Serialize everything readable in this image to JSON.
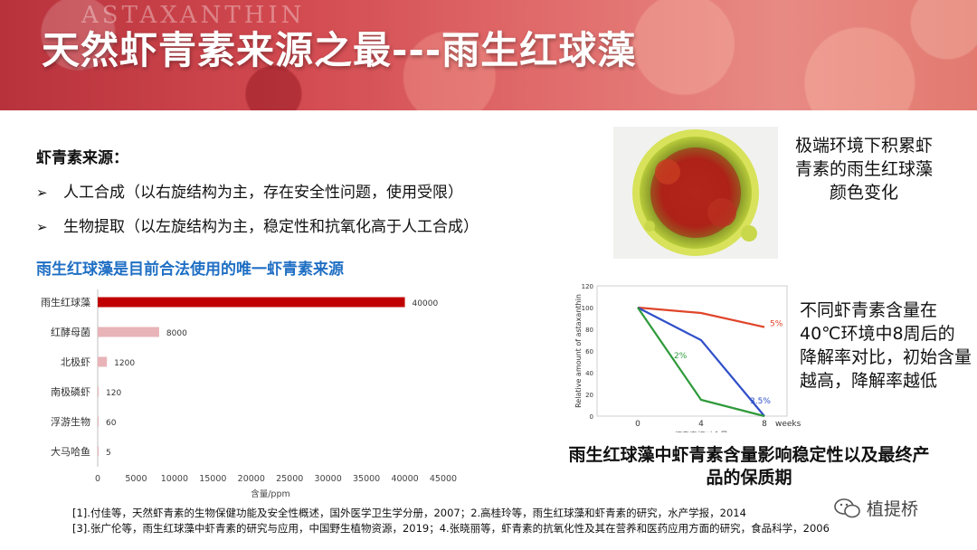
{
  "banner": {
    "title": "天然虾青素来源之最---雨生红球藻",
    "watermark": "ASTAXANTHIN"
  },
  "sources": {
    "heading": "虾青素来源：",
    "bullets": [
      "人工合成（以右旋结构为主，存在安全性问题，使用受限）",
      "生物提取（以左旋结构为主，稳定性和抗氧化高于人工合成）"
    ],
    "highlight": "雨生红球藻是目前合法使用的唯一虾青素来源"
  },
  "colors": {
    "accent_blue": "#1f6fc4",
    "bar_red": "#c00000",
    "bar_pink": "#e8b4b8"
  },
  "chart_data": [
    {
      "type": "bar",
      "orientation": "horizontal",
      "categories": [
        "雨生红球藻",
        "红酵母菌",
        "北极虾",
        "南极磷虾",
        "浮游生物",
        "大马哈鱼"
      ],
      "values": [
        40000,
        8000,
        1200,
        120,
        60,
        5
      ],
      "xlabel": "含量/ppm",
      "xlim": [
        0,
        45000
      ],
      "xticks": [
        0,
        5000,
        10000,
        15000,
        20000,
        25000,
        30000,
        35000,
        40000,
        45000
      ]
    },
    {
      "type": "line",
      "x": [
        0,
        4,
        8
      ],
      "xticks": [
        "0",
        "4",
        "8"
      ],
      "xtick_suffix": "weeks",
      "xlabel": "虾青素相对含量",
      "ylabel": "Relative amount of astaxanthin",
      "ylim": [
        0,
        120
      ],
      "yticks": [
        0,
        20,
        40,
        60,
        80,
        100,
        120
      ],
      "series": [
        {
          "name": "5%",
          "color": "#e0452a",
          "values": [
            100,
            95,
            82
          ]
        },
        {
          "name": "3.5%",
          "color": "#2f4fc9",
          "values": [
            100,
            70,
            0
          ]
        },
        {
          "name": "2%",
          "color": "#2e9a3a",
          "values": [
            100,
            15,
            0
          ]
        }
      ]
    }
  ],
  "photo_caption": "极端环境下积累虾青素的雨生红球藻颜色变化",
  "degradation_caption": "不同虾青素含量在40℃环境中8周后的降解率对比，初始含量越高，降解率越低",
  "stability_caption": "雨生红球藻中虾青素含量影响稳定性以及最终产品的保质期",
  "references": [
    "[1].付佳等，天然虾青素的生物保健功能及安全性概述，国外医学卫生学分册，2007；2.高桂玲等，雨生红球藻和虾青素的研究，水产学报，2014",
    "[3].张广伦等，雨生红球藻中虾青素的研究与应用，中国野生植物资源，2019；4.张晓丽等，虾青素的抗氧化性及其在营养和医药应用方面的研究，食品科学，2006"
  ],
  "brand": {
    "name": "植提桥",
    "icon": "wechat-icon"
  }
}
